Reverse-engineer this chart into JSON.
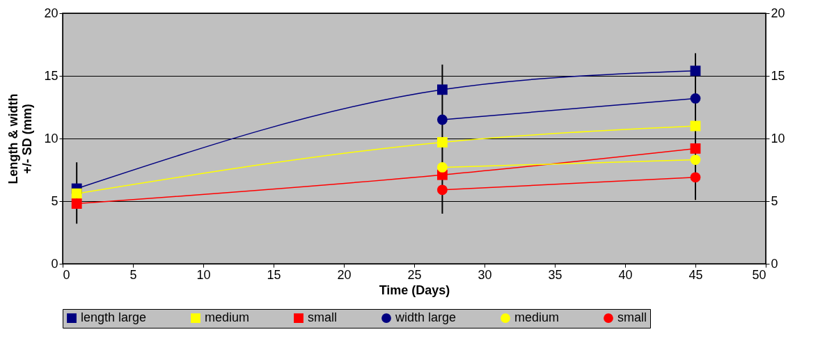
{
  "chart_data": {
    "type": "line",
    "xlabel": "Time (Days)",
    "ylabel": "Length & width\n+/- SD (mm)",
    "x": [
      1,
      27,
      45
    ],
    "xlim": [
      0,
      50
    ],
    "xticks": [
      0,
      5,
      10,
      15,
      20,
      25,
      30,
      35,
      40,
      45,
      50
    ],
    "ylim": [
      0,
      20
    ],
    "yticks": [
      0,
      5,
      10,
      15,
      20
    ],
    "y2lim": [
      0,
      20
    ],
    "y2ticks": [
      0,
      5,
      10,
      15,
      20
    ],
    "grid": "y",
    "legend": "bottom",
    "line_style": "solid",
    "series": [
      {
        "name": "length large",
        "color": "#000080",
        "marker": "square",
        "values": [
          6.0,
          13.9,
          15.4
        ]
      },
      {
        "name": "medium",
        "color": "#ffff00",
        "marker": "square",
        "values": [
          5.6,
          9.7,
          11.0
        ],
        "errors": [
          [
            3.2,
            8.1
          ],
          [
            4.0,
            15.9
          ],
          [
            5.1,
            16.8
          ]
        ]
      },
      {
        "name": "small",
        "color": "#ff0000",
        "marker": "square",
        "values": [
          4.8,
          7.1,
          9.2
        ]
      },
      {
        "name": "width large",
        "color": "#000080",
        "marker": "circle",
        "values": [
          null,
          11.5,
          13.2
        ]
      },
      {
        "name": "medium",
        "color": "#ffff00",
        "marker": "circle",
        "values": [
          null,
          7.7,
          8.3
        ]
      },
      {
        "name": "small",
        "color": "#ff0000",
        "marker": "circle",
        "values": [
          null,
          5.9,
          6.9
        ]
      }
    ]
  }
}
